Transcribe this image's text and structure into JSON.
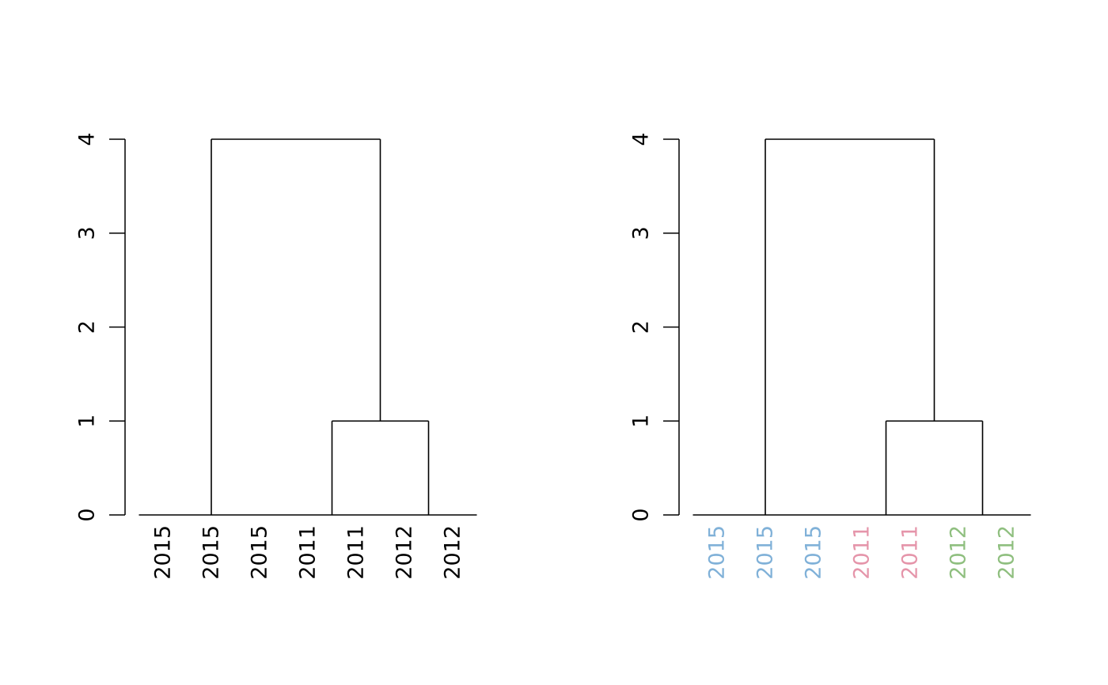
{
  "chart_data": [
    {
      "type": "dendrogram",
      "title": "",
      "xlabel": "",
      "ylabel": "",
      "ylim": [
        0,
        4
      ],
      "yticks": [
        0,
        1,
        2,
        3,
        4
      ],
      "leaves": [
        "2015",
        "2015",
        "2015",
        "2011",
        "2011",
        "2012",
        "2012"
      ],
      "leaf_colors": [
        "#000000",
        "#000000",
        "#000000",
        "#000000",
        "#000000",
        "#000000",
        "#000000"
      ],
      "merges": [
        {
          "left": {
            "leaves": [
              1,
              2,
              3
            ]
          },
          "right": {
            "cluster": 1
          },
          "height": 4
        },
        {
          "left": {
            "leaves": [
              4,
              5
            ]
          },
          "right": {
            "leaves": [
              6,
              7
            ]
          },
          "height": 1
        }
      ]
    },
    {
      "type": "dendrogram",
      "title": "",
      "xlabel": "",
      "ylabel": "",
      "ylim": [
        0,
        4
      ],
      "yticks": [
        0,
        1,
        2,
        3,
        4
      ],
      "leaves": [
        "2015",
        "2015",
        "2015",
        "2011",
        "2011",
        "2012",
        "2012"
      ],
      "leaf_colors": [
        "#80b1d8",
        "#80b1d8",
        "#80b1d8",
        "#e595aa",
        "#e595aa",
        "#8fbf7f",
        "#8fbf7f"
      ],
      "merges": [
        {
          "left": {
            "leaves": [
              1,
              2,
              3
            ]
          },
          "right": {
            "cluster": 1
          },
          "height": 4
        },
        {
          "left": {
            "leaves": [
              4,
              5
            ]
          },
          "right": {
            "leaves": [
              6,
              7
            ]
          },
          "height": 1
        }
      ]
    }
  ]
}
